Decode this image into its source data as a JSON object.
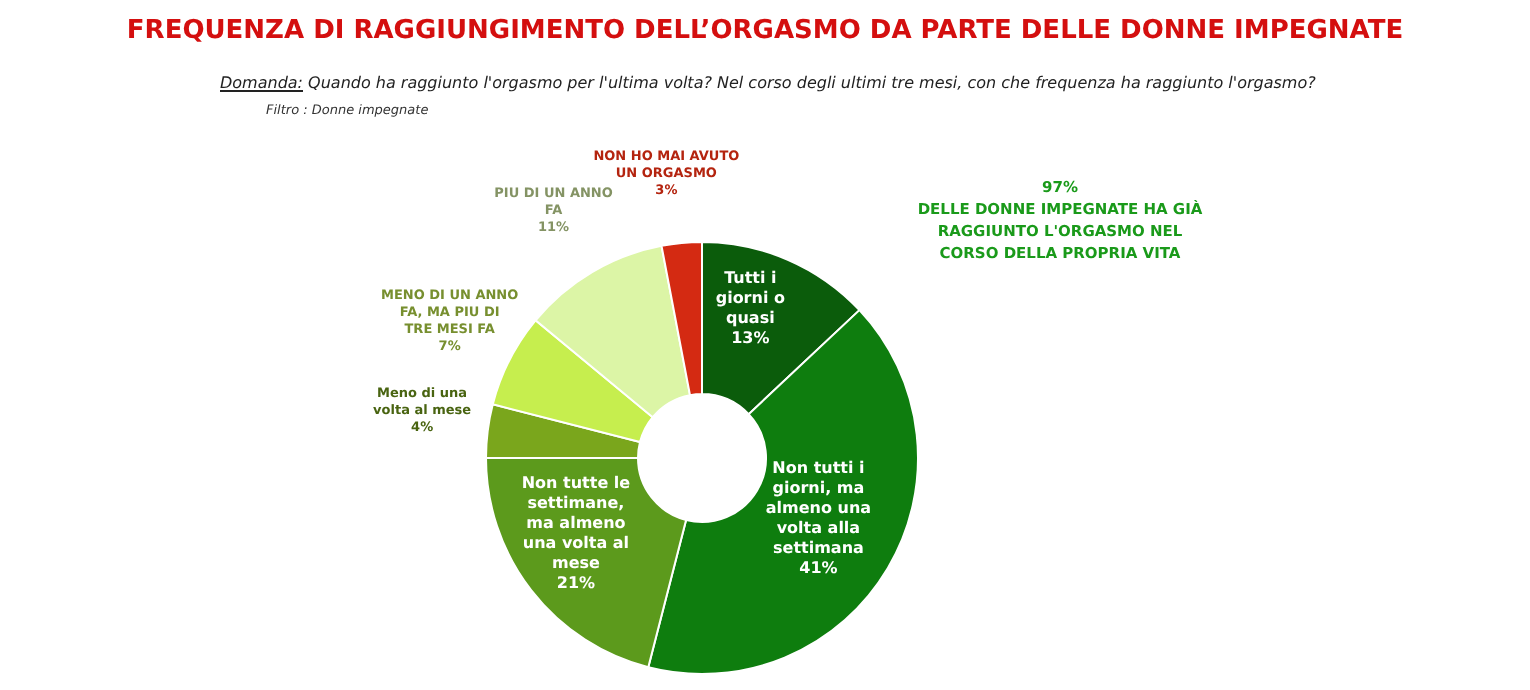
{
  "chart_data": {
    "type": "donut",
    "title": "FREQUENZA DI RAGGIUNGIMENTO DELL’ORGASMO DA PARTE DELLE DONNE IMPEGNATE",
    "subtitle": "Domanda:  Quando ha raggiunto l'orgasmo per l'ultima volta? Nel corso degli ultimi tre mesi, con che frequenza ha raggiunto l'orgasmo?",
    "annotations": [
      "Filtro : Donne impegnate",
      "97%\nDELLE DONNE IMPEGNATE HA GIÀ\nRAGGIUNTO L'ORGASMO NEL\nCORSO DELLA PROPRIA VITA"
    ],
    "categories": [
      "Tutti i giorni o quasi",
      "Non tutti i giorni, ma almeno una volta alla settimana",
      "Non tutte le settimane, ma almeno una volta al mese",
      "Meno di una volta al mese",
      "MENO DI UN ANNO FA, MA PIU DI TRE MESI FA",
      "PIU DI UN ANNO FA",
      "NON HO MAI AVUTO UN ORGASMO"
    ],
    "values": [
      13,
      41,
      21,
      4,
      7,
      11,
      3
    ],
    "value_labels": [
      "13%",
      "41%",
      "21%",
      "4%",
      "7%",
      "11%",
      "3%"
    ],
    "colors": [
      "#0b5c0b",
      "#0e7d0e",
      "#5c9a1c",
      "#7aa61c",
      "#c6ee4e",
      "#dcf5a6",
      "#d42a12"
    ],
    "data_labels": true
  }
}
